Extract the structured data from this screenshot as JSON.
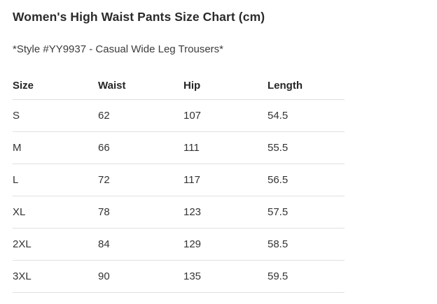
{
  "page": {
    "title": "Women's High Waist Pants Size Chart (cm)",
    "subtitle": "*Style #YY9937 - Casual Wide Leg Trousers*"
  },
  "chart_data": {
    "type": "table",
    "title": "Women's High Waist Pants Size Chart (cm)",
    "subtitle": "*Style #YY9937 - Casual Wide Leg Trousers*",
    "unit": "cm",
    "columns": [
      "Size",
      "Waist",
      "Hip",
      "Length"
    ],
    "rows": [
      [
        "S",
        "62",
        "107",
        "54.5"
      ],
      [
        "M",
        "66",
        "111",
        "55.5"
      ],
      [
        "L",
        "72",
        "117",
        "56.5"
      ],
      [
        "XL",
        "78",
        "123",
        "57.5"
      ],
      [
        "2XL",
        "84",
        "129",
        "58.5"
      ],
      [
        "3XL",
        "90",
        "135",
        "59.5"
      ]
    ]
  },
  "colors": {
    "background": "#ffffff",
    "title_text": "#2b2b2b",
    "body_text": "#333333",
    "header_text": "#262626",
    "row_border": "#e0e0e0",
    "header_border": "#dcdcdc"
  }
}
